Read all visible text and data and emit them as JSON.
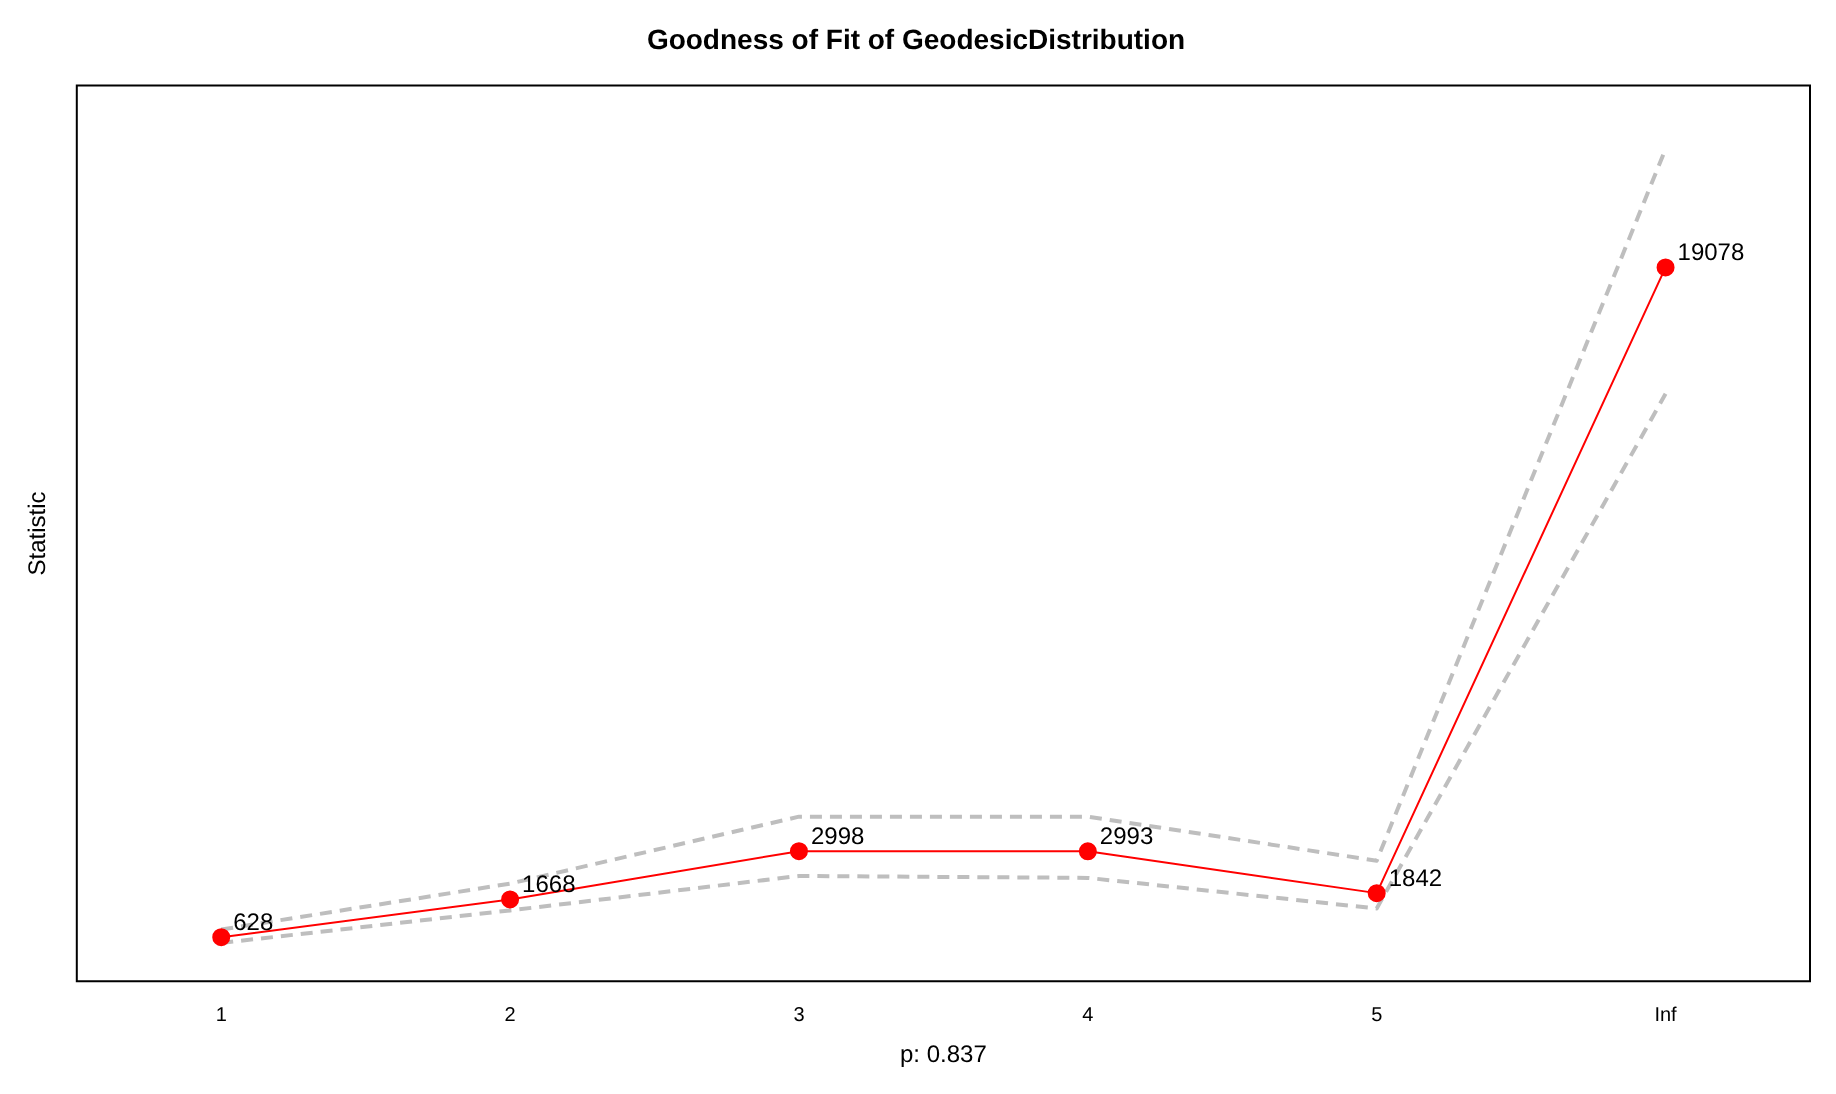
{
  "chart_data": {
    "type": "line",
    "title": "Goodness of Fit of GeodesicDistribution",
    "xlabel": "p: 0.837",
    "ylabel": "Statistic",
    "categories": [
      "1",
      "2",
      "3",
      "4",
      "5",
      "Inf"
    ],
    "ylim": [
      -584,
      24086
    ],
    "tick_labels": "x",
    "grid": false,
    "legend": false,
    "series": [
      {
        "color": "#bebebe",
        "line_style": "dashed",
        "marker": "none",
        "values": [
          838,
          2104,
          3949,
          3949,
          2736,
          22340
        ]
      },
      {
        "color": "#bebebe",
        "line_style": "dashed",
        "marker": "none",
        "values": [
          470,
          1366,
          2315,
          2262,
          1419,
          15595
        ]
      },
      {
        "color": "#ff0000",
        "line_style": "solid",
        "marker": "circle",
        "values": [
          628,
          1668,
          2998,
          2993,
          1842,
          19078
        ],
        "value_labels": [
          "628",
          "1668",
          "2998",
          "2993",
          "1842",
          "19078"
        ]
      }
    ]
  }
}
